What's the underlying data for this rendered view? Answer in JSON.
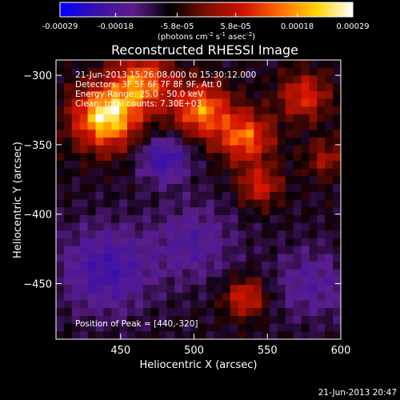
{
  "colorbar": {
    "tick_labels": [
      "-0.00029",
      "-0.00018",
      "-5.8e-05",
      "5.8e-05",
      "0.00018",
      "0.00029"
    ],
    "tick_values": [
      -0.00029,
      -0.00018,
      -5.8e-05,
      5.8e-05,
      0.00018,
      0.00029
    ],
    "range": [
      -0.00029,
      0.00029
    ],
    "units": {
      "prefix": "(photons cm",
      "exp1": "-2",
      "mid": " s",
      "exp2": "-1",
      "mid2": " asec",
      "exp3": "-2",
      "suffix": ")"
    },
    "colors": [
      "#0000ff",
      "#3b0fa8",
      "#5a1d8c",
      "#000000",
      "#7a1000",
      "#d01000",
      "#ff6a00",
      "#ffd200",
      "#ffffff"
    ]
  },
  "chart_data": {
    "type": "heatmap",
    "title": "Reconstructed RHESSI Image",
    "xlabel": "Heliocentric X (arcsec)",
    "ylabel": "Heliocentric Y (arcsec)",
    "xlim": [
      406,
      600
    ],
    "ylim": [
      -490,
      -289
    ],
    "x_ticks": [
      450,
      500,
      550,
      600
    ],
    "x_tick_labels": [
      "450",
      "500",
      "550",
      "600"
    ],
    "y_ticks": [
      -300,
      -350,
      -400,
      -450
    ],
    "y_tick_labels": [
      "−300",
      "−350",
      "−400",
      "−450"
    ],
    "peak": {
      "x": 440,
      "y": -320,
      "label": "Position of Peak = [440,-320]"
    },
    "grid": "36x36",
    "sources": [
      {
        "x": 440,
        "y": -330,
        "amp": 1.0,
        "sigma": 16
      },
      {
        "x": 465,
        "y": -305,
        "amp": 0.7,
        "sigma": 14
      },
      {
        "x": 505,
        "y": -325,
        "amp": 0.75,
        "sigma": 14
      },
      {
        "x": 535,
        "y": -345,
        "amp": 0.7,
        "sigma": 13
      },
      {
        "x": 575,
        "y": -315,
        "amp": 0.55,
        "sigma": 12
      },
      {
        "x": 545,
        "y": -380,
        "amp": 0.5,
        "sigma": 10
      },
      {
        "x": 590,
        "y": -360,
        "amp": 0.35,
        "sigma": 10
      },
      {
        "x": 535,
        "y": -460,
        "amp": 0.55,
        "sigma": 10
      },
      {
        "x": 480,
        "y": -360,
        "amp": -0.55,
        "sigma": 12
      },
      {
        "x": 440,
        "y": -440,
        "amp": -0.5,
        "sigma": 22
      },
      {
        "x": 500,
        "y": -420,
        "amp": -0.35,
        "sigma": 20
      },
      {
        "x": 580,
        "y": -450,
        "amp": -0.35,
        "sigma": 18
      }
    ]
  },
  "annotations": [
    "21-Jun-2013 15:26:08.000 to 15:30:12.000",
    "Detectors: 3F 5F 6F 7F 8F 9F, Att 0",
    "Energy Range: 25.0 - 50.0 keV",
    "Clean: total counts: 7.30E+03"
  ],
  "footer": {
    "timestamp": "21-Jun-2013 20:47"
  }
}
